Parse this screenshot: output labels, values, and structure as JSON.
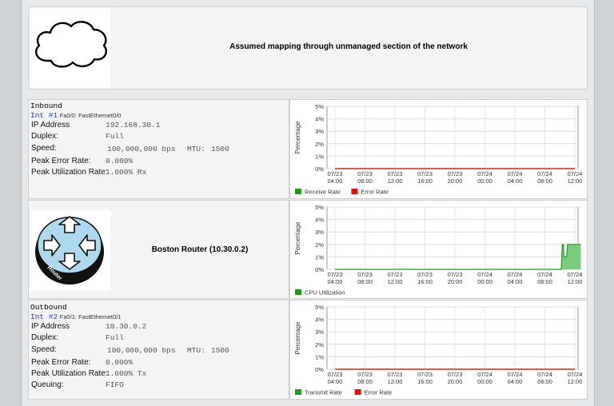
{
  "cloud_section": {
    "message": "Assumed mapping through unmanaged section of the network"
  },
  "inbound": {
    "header": "Inbound",
    "interface_num": "Int #1",
    "interface_desc": "Fa0/0: FastEthernet0/0",
    "rows": [
      {
        "label": "IP Address",
        "value": "192.168.30.1"
      },
      {
        "label": "Duplex:",
        "value": "Full"
      },
      {
        "label": "Speed:",
        "value": "100,000,000 bps",
        "extra_label": "MTU:",
        "extra_value": "1500"
      },
      {
        "label": "Peak Error Rate:",
        "value": "0.000%"
      },
      {
        "label": "Peak Utilization Rate:",
        "value": "1.000% Rx"
      }
    ]
  },
  "router": {
    "title": "Boston Router (10.30.0.2)",
    "icon_label": "Router"
  },
  "outbound": {
    "header": "Outbound",
    "interface_num": "Int #2",
    "interface_desc": "Fa0/1: FastEthernet0/1",
    "rows": [
      {
        "label": "IP Address",
        "value": "10.30.0.2"
      },
      {
        "label": "Duplex:",
        "value": "Full"
      },
      {
        "label": "Speed:",
        "value": "100,000,000 bps",
        "extra_label": "MTU:",
        "extra_value": "1500"
      },
      {
        "label": "Peak Error Rate:",
        "value": "0.000%"
      },
      {
        "label": "Peak Utilization Rate:",
        "value": "1.000% Tx"
      },
      {
        "label": "Queuing:",
        "value": "FIFO"
      }
    ]
  },
  "chart_data": [
    {
      "type": "line",
      "ylabel": "Percentage",
      "ylim": [
        0,
        5
      ],
      "yticks": [
        "0%",
        "1%",
        "2%",
        "3%",
        "4%",
        "5%"
      ],
      "categories": [
        "07/23 04:00",
        "07/23 08:00",
        "07/23 12:00",
        "07/23 16:00",
        "07/23 20:00",
        "07/24 00:00",
        "07/24 04:00",
        "07/24 08:00",
        "07/24 12:00"
      ],
      "grid": true,
      "legend_position": "bottom-left",
      "series": [
        {
          "name": "Receive Rate",
          "color": "#1f9a1f",
          "values": [
            0,
            0,
            0,
            0,
            0,
            0,
            0,
            0,
            0
          ]
        },
        {
          "name": "Error Rate",
          "color": "#e01010",
          "values": [
            0,
            0,
            0,
            0,
            0,
            0,
            0,
            0,
            0
          ]
        }
      ]
    },
    {
      "type": "area",
      "ylabel": "Percentage",
      "ylim": [
        0,
        5
      ],
      "yticks": [
        "0%",
        "1%",
        "2%",
        "3%",
        "4%",
        "5%"
      ],
      "categories": [
        "07/23 04:00",
        "07/23 08:00",
        "07/23 12:00",
        "07/23 16:00",
        "07/23 20:00",
        "07/24 00:00",
        "07/24 04:00",
        "07/24 08:00",
        "07/24 12:00"
      ],
      "grid": true,
      "legend_position": "bottom-left",
      "series": [
        {
          "name": "CPU Utilization",
          "color": "#1f9a1f",
          "fill": "#7ccb7c",
          "points": [
            [
              0,
              0
            ],
            [
              7.55,
              0
            ],
            [
              7.58,
              2
            ],
            [
              7.62,
              2
            ],
            [
              7.64,
              1
            ],
            [
              7.72,
              1
            ],
            [
              7.76,
              2
            ],
            [
              8.2,
              2
            ]
          ]
        }
      ]
    },
    {
      "type": "line",
      "ylabel": "Percentage",
      "ylim": [
        0,
        5
      ],
      "yticks": [
        "0%",
        "1%",
        "2%",
        "3%",
        "4%",
        "5%"
      ],
      "categories": [
        "07/23 04:00",
        "07/23 08:00",
        "07/23 12:00",
        "07/23 16:00",
        "07/23 20:00",
        "07/24 00:00",
        "07/24 04:00",
        "07/24 08:00",
        "07/24 12:00"
      ],
      "grid": true,
      "legend_position": "bottom-left",
      "series": [
        {
          "name": "Transmit Rate",
          "color": "#1f9a1f",
          "values": [
            0,
            0,
            0,
            0,
            0,
            0,
            0,
            0,
            0
          ]
        },
        {
          "name": "Error Rate",
          "color": "#e01010",
          "values": [
            0,
            0,
            0,
            0,
            0,
            0,
            0,
            0,
            0
          ]
        }
      ]
    }
  ]
}
